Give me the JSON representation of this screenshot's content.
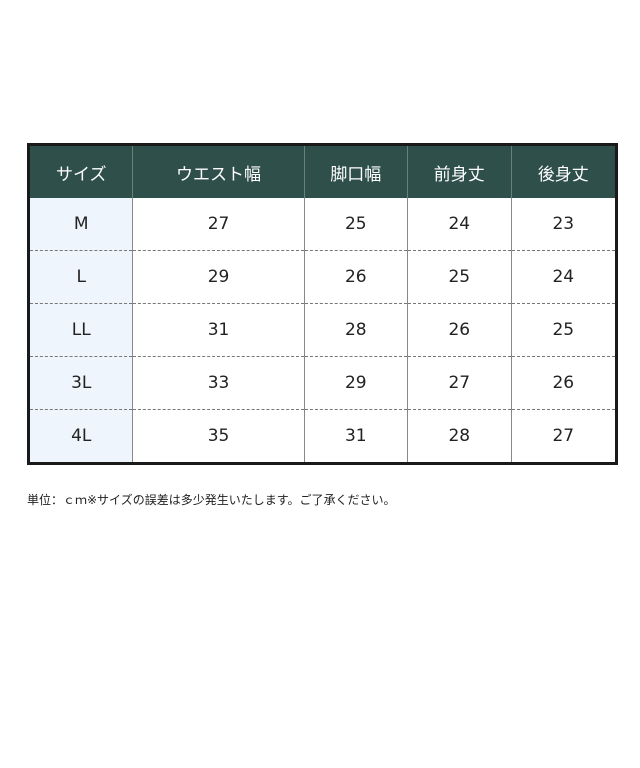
{
  "table": {
    "headers": [
      "サイズ",
      "ウエスト幅",
      "脚口幅",
      "前身丈",
      "後身丈"
    ],
    "rows": [
      [
        "M",
        "27",
        "25",
        "24",
        "23"
      ],
      [
        "L",
        "29",
        "26",
        "25",
        "24"
      ],
      [
        "LL",
        "31",
        "28",
        "26",
        "25"
      ],
      [
        "3L",
        "33",
        "29",
        "27",
        "26"
      ],
      [
        "4L",
        "35",
        "31",
        "28",
        "27"
      ]
    ]
  },
  "note": "単位：ｃｍ※サイズの誤差は多少発生いたします。ご了承ください。",
  "colors": {
    "header_bg": "#2f4f4a",
    "size_col_bg": "#eef5fd"
  }
}
